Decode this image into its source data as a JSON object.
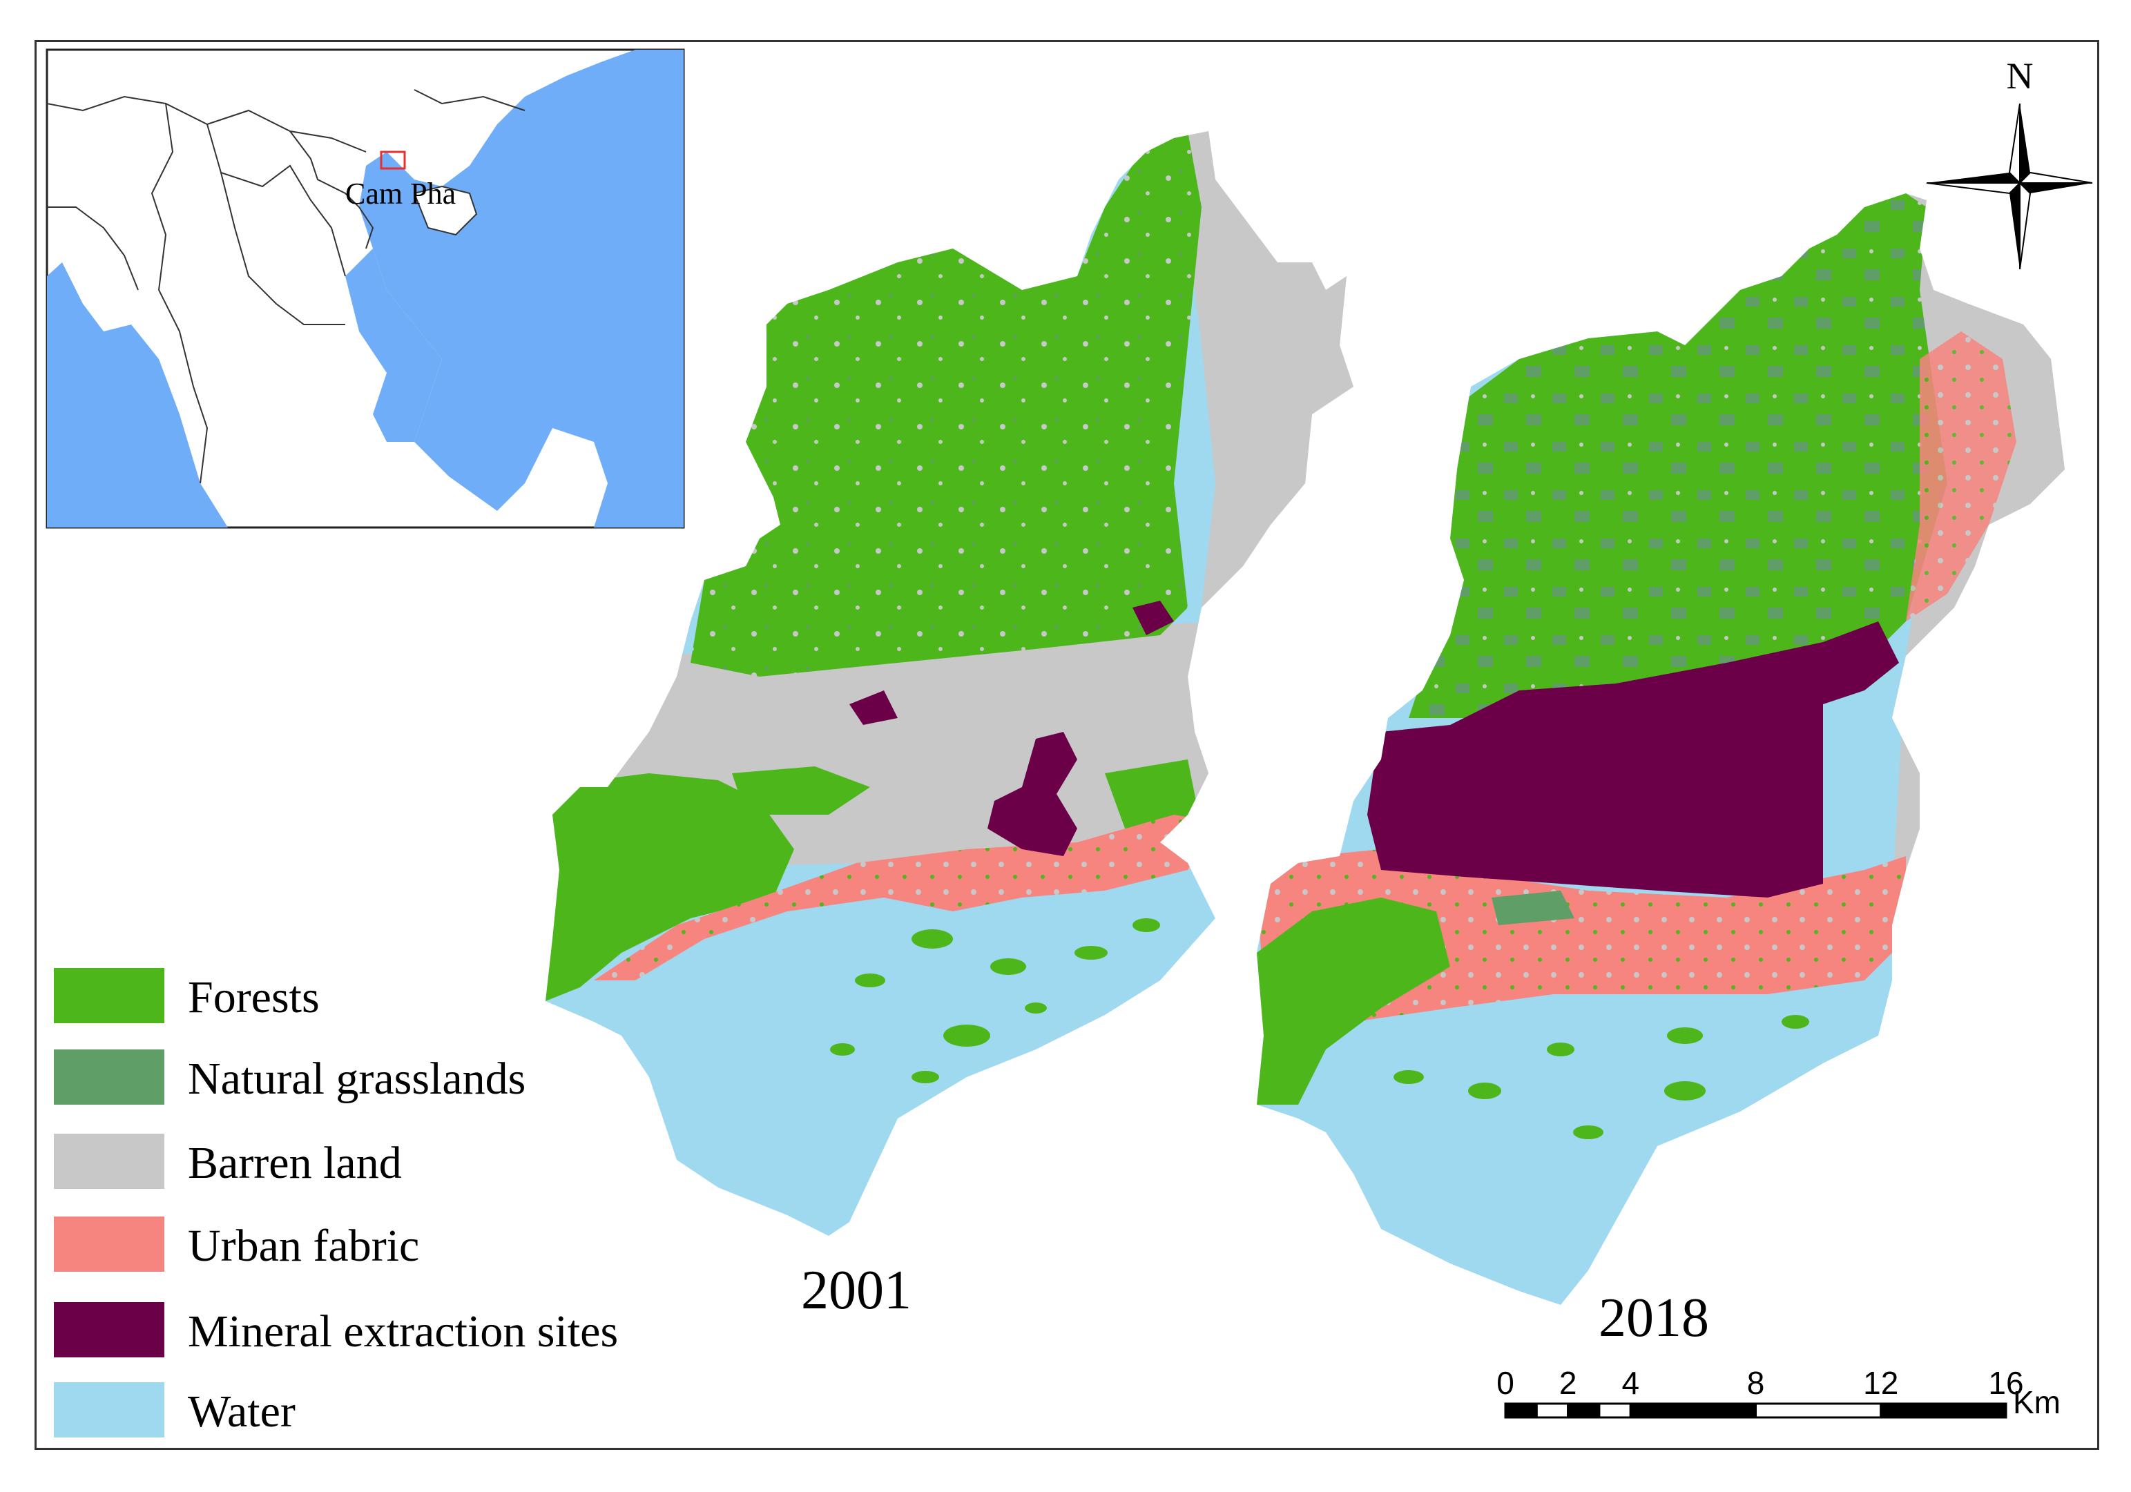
{
  "colors": {
    "forests": "#4CB61A",
    "natural_grasslands": "#5F9E66",
    "barren_land": "#C8C8C8",
    "urban_fabric": "#F7857F",
    "mineral_extraction_sites": "#6B0048",
    "water": "#9ED9EF",
    "inset_sea": "#70ADF8"
  },
  "inset": {
    "place_label": "Cam Pha"
  },
  "maps": [
    {
      "year": "2001"
    },
    {
      "year": "2018"
    }
  ],
  "legend": {
    "items": [
      {
        "key": "forests",
        "label": "Forests"
      },
      {
        "key": "natural_grasslands",
        "label": "Natural grasslands"
      },
      {
        "key": "barren_land",
        "label": "Barren land"
      },
      {
        "key": "urban_fabric",
        "label": "Urban fabric"
      },
      {
        "key": "mineral_extraction_sites",
        "label": "Mineral extraction sites"
      },
      {
        "key": "water",
        "label": "Water"
      }
    ]
  },
  "north_arrow": {
    "label": "N"
  },
  "scale_bar": {
    "ticks": [
      "0",
      "2",
      "4",
      "8",
      "12",
      "16"
    ],
    "unit": "Km"
  }
}
